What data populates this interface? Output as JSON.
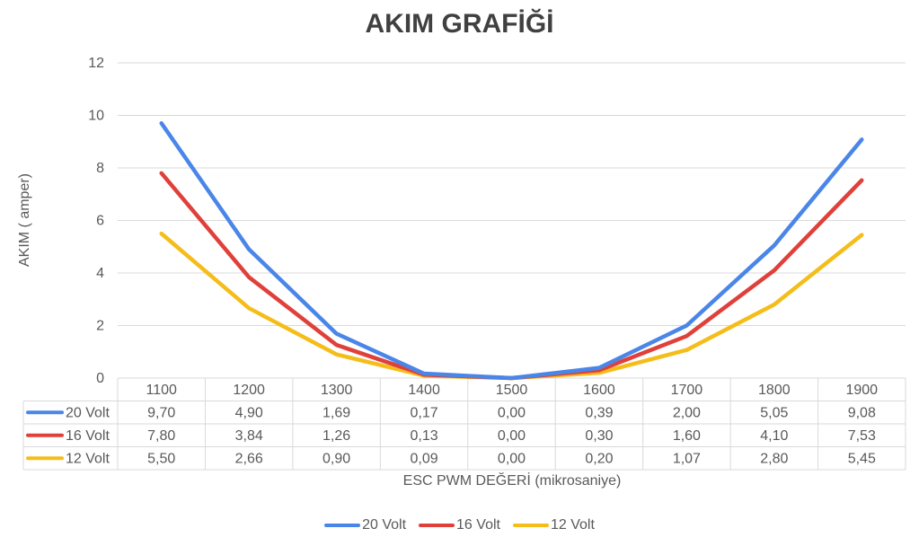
{
  "chart_data": {
    "type": "line",
    "title": "AKIM GRAFİĞİ",
    "xlabel": "ESC PWM DEĞERİ (mikrosaniye)",
    "ylabel": "AKIM ( amper)",
    "ylim": [
      0,
      12
    ],
    "y_ticks": [
      "0",
      "2",
      "4",
      "6",
      "8",
      "10",
      "12"
    ],
    "categories": [
      "1100",
      "1200",
      "1300",
      "1400",
      "1500",
      "1600",
      "1700",
      "1800",
      "1900"
    ],
    "grid": true,
    "legend_position": "bottom",
    "data_table": true,
    "series": [
      {
        "name": "20 Volt",
        "color": "#4a86e8",
        "values": [
          9.7,
          4.9,
          1.69,
          0.17,
          0.0,
          0.39,
          2.0,
          5.05,
          9.08
        ],
        "labels": [
          "9,70",
          "4,90",
          "1,69",
          "0,17",
          "0,00",
          "0,39",
          "2,00",
          "5,05",
          "9,08"
        ]
      },
      {
        "name": "16 Volt",
        "color": "#e0403a",
        "values": [
          7.8,
          3.84,
          1.26,
          0.13,
          0.0,
          0.3,
          1.6,
          4.1,
          7.53
        ],
        "labels": [
          "7,80",
          "3,84",
          "1,26",
          "0,13",
          "0,00",
          "0,30",
          "1,60",
          "4,10",
          "7,53"
        ]
      },
      {
        "name": "12 Volt",
        "color": "#f5bd1a",
        "values": [
          5.5,
          2.66,
          0.9,
          0.09,
          0.0,
          0.2,
          1.07,
          2.8,
          5.45
        ],
        "labels": [
          "5,50",
          "2,66",
          "0,90",
          "0,09",
          "0,00",
          "0,20",
          "1,07",
          "2,80",
          "5,45"
        ]
      }
    ]
  }
}
